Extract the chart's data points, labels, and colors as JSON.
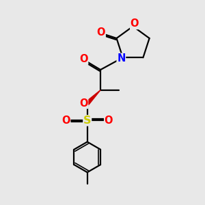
{
  "bg_color": "#e8e8e8",
  "bond_color": "#000000",
  "bond_width": 1.6,
  "atom_colors": {
    "O": "#ff0000",
    "N": "#0000ff",
    "S": "#cccc00",
    "C": "#000000"
  },
  "font_size": 9.5,
  "fig_size": [
    3.0,
    3.0
  ],
  "dpi": 100,
  "xlim": [
    0,
    10
  ],
  "ylim": [
    0,
    10
  ]
}
